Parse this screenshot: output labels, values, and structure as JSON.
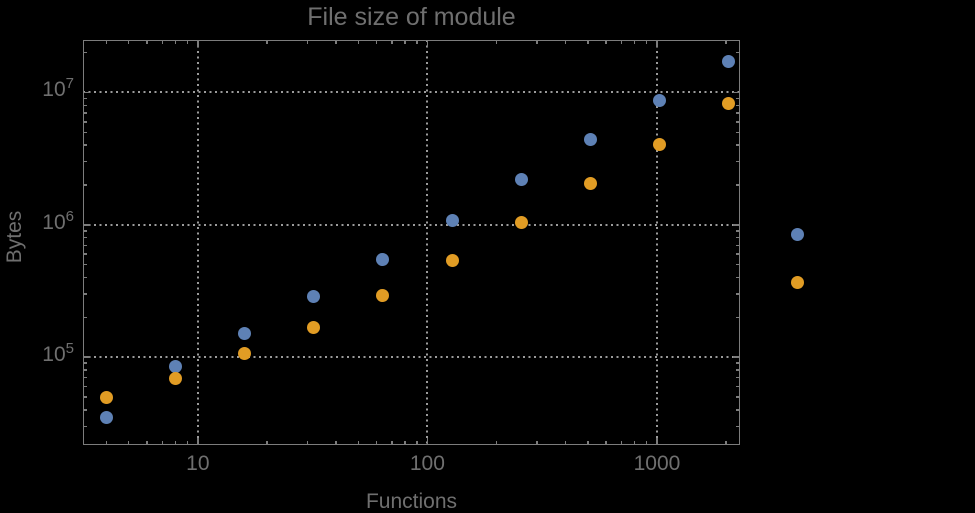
{
  "chart_data": {
    "type": "scatter",
    "title": "File size of module",
    "xlabel": "Functions",
    "ylabel": "Bytes",
    "x_scale": "log",
    "y_scale": "log",
    "grid": true,
    "legend": "none",
    "plot_range_clipping": false,
    "x": [
      4,
      8,
      16,
      32,
      64,
      128,
      256,
      512,
      1024,
      2048,
      4096
    ],
    "series": [
      {
        "name": "blue-series",
        "color": "#5E81B5",
        "values": [
          35000,
          85000,
          152000,
          289000,
          549000,
          1080000,
          2190000,
          4380000,
          8630000,
          17100000,
          840000
        ]
      },
      {
        "name": "orange-series",
        "color": "#E19C24",
        "values": [
          49400,
          69300,
          106000,
          167000,
          291000,
          535000,
          1040000,
          2040000,
          4050000,
          8260000,
          365000
        ]
      }
    ],
    "xlim": [
      3.16,
      2300
    ],
    "ylim": [
      21700,
      24900000
    ],
    "x_major_ticks": [
      10,
      100,
      1000
    ],
    "y_major_ticks": [
      100000,
      1000000,
      10000000
    ],
    "x_tick_labels": [
      "10",
      "100",
      "1000"
    ],
    "y_tick_labels": [
      {
        "base": "10",
        "exp": "5"
      },
      {
        "base": "10",
        "exp": "6"
      },
      {
        "base": "10",
        "exp": "7"
      }
    ],
    "colors": {
      "background": "#000000",
      "text": "#6f6f6f",
      "frame": "#7c7c7c",
      "grid": "#9b9b9b"
    }
  }
}
